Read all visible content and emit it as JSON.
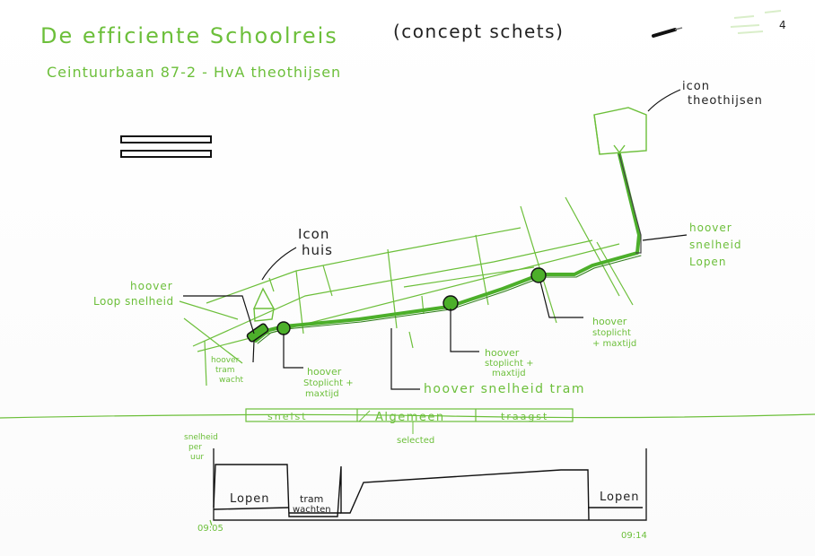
{
  "header": {
    "title": "De efficiente Schoolreis",
    "subtitle_concept": "(concept schets)",
    "route": "Ceintuurbaan 87-2 - HvA theothijsen",
    "corner_mark": "4"
  },
  "icons": {
    "house_label_1": "Icon",
    "house_label_2": "huis",
    "building_label_1": "icon",
    "building_label_2": "theothijsen"
  },
  "annotations": {
    "hover_loop_1": "hoover",
    "hover_loop_2": "Loop snelheid",
    "hover_tram_wacht_1": "hoover",
    "hover_tram_wacht_2": "tram",
    "hover_tram_wacht_3": "wacht",
    "hover_stop1_1": "hoover",
    "hover_stop1_2": "Stoplicht +",
    "hover_stop1_3": "maxtijd",
    "hover_snelheid_tram": "hoover snelheid tram",
    "hover_stop2_1": "hoover",
    "hover_stop2_2": "stoplicht +",
    "hover_stop2_3": "maxtijd",
    "hover_stop3_1": "hoover",
    "hover_stop3_2": "stoplicht",
    "hover_stop3_3": "+ maxtijd",
    "hover_walk_1": "hoover",
    "hover_walk_2": "snelheid",
    "hover_walk_3": "Lopen"
  },
  "tabs": [
    {
      "label": "snelst"
    },
    {
      "label": "Algemeen"
    },
    {
      "label": "traagst"
    }
  ],
  "selected_label": "selected",
  "graph": {
    "ylabel_1": "snelheid",
    "ylabel_2": "per",
    "ylabel_3": "uur",
    "seg_lopen_start": "Lopen",
    "seg_tram_1": "tram",
    "seg_tram_2": "wachten",
    "seg_lopen_end": "Lopen",
    "time_start": "09:05",
    "time_end": "09:14"
  },
  "colors": {
    "green": "#6cbf3a",
    "route": "#4caf2a",
    "ink": "#222222"
  }
}
